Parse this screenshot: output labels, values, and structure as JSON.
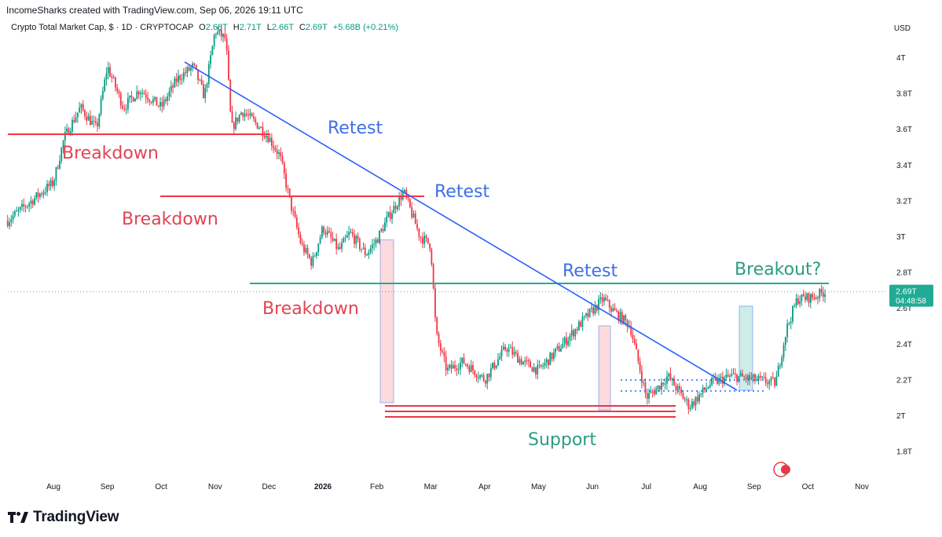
{
  "header": {
    "attribution": "IncomeSharks created with TradingView.com, Sep 06, 2026 19:11 UTC"
  },
  "legend": {
    "symbol": "Crypto Total Market Cap, $ · 1D · CRYPTOCAP",
    "open_label": "O",
    "open": "2.68T",
    "high_label": "H",
    "high": "2.71T",
    "low_label": "L",
    "low": "2.66T",
    "close_label": "C",
    "close": "2.69T",
    "change": "+5.68B (+0.21%)"
  },
  "currency": "USD",
  "price_badge": {
    "price": "2.69T",
    "countdown": "04:48:58",
    "color": "#22ab94"
  },
  "footer": {
    "brand": "TradingView"
  },
  "colors": {
    "up": "#089981",
    "down": "#f23645",
    "trend": "#2962ff",
    "support": "#e63946",
    "teal_level": "#22ab94",
    "red_annot": "#e04455",
    "blue_annot": "#3d6fe8",
    "green_annot": "#2a9d7f"
  },
  "chart_data": {
    "type": "candlestick",
    "y_axis": {
      "ticks": [
        "1.8T",
        "2T",
        "2.2T",
        "2.4T",
        "2.6T",
        "2.8T",
        "3T",
        "3.2T",
        "3.4T",
        "3.6T",
        "3.8T",
        "4T"
      ],
      "values": [
        1.8,
        2.0,
        2.2,
        2.4,
        2.6,
        2.8,
        3.0,
        3.2,
        3.4,
        3.6,
        3.8,
        4.0
      ],
      "unit": "USD"
    },
    "x_axis": {
      "labels": [
        "Aug",
        "Sep",
        "Oct",
        "Nov",
        "Dec",
        "2026",
        "Feb",
        "Mar",
        "Apr",
        "May",
        "Jun",
        "Jul",
        "Aug",
        "Sep",
        "Oct",
        "Nov"
      ]
    },
    "price_path": [
      {
        "m": 0.0,
        "v": 3.3
      },
      {
        "m": 0.2,
        "v": 3.55
      },
      {
        "m": 0.5,
        "v": 3.72
      },
      {
        "m": 0.8,
        "v": 3.6
      },
      {
        "m": 1.0,
        "v": 3.95
      },
      {
        "m": 1.3,
        "v": 3.72
      },
      {
        "m": 1.6,
        "v": 3.82
      },
      {
        "m": 2.0,
        "v": 3.72
      },
      {
        "m": 2.3,
        "v": 3.88
      },
      {
        "m": 2.6,
        "v": 3.95
      },
      {
        "m": 2.8,
        "v": 3.78
      },
      {
        "m": 3.0,
        "v": 4.15
      },
      {
        "m": 3.2,
        "v": 4.1
      },
      {
        "m": 3.3,
        "v": 3.6
      },
      {
        "m": 3.5,
        "v": 3.7
      },
      {
        "m": 3.8,
        "v": 3.62
      },
      {
        "m": 4.0,
        "v": 3.55
      },
      {
        "m": 4.2,
        "v": 3.45
      },
      {
        "m": 4.4,
        "v": 3.18
      },
      {
        "m": 4.6,
        "v": 2.95
      },
      {
        "m": 4.8,
        "v": 2.85
      },
      {
        "m": 5.0,
        "v": 3.05
      },
      {
        "m": 5.3,
        "v": 2.92
      },
      {
        "m": 5.5,
        "v": 3.02
      },
      {
        "m": 5.8,
        "v": 2.9
      },
      {
        "m": 6.0,
        "v": 2.98
      },
      {
        "m": 6.2,
        "v": 3.1
      },
      {
        "m": 6.5,
        "v": 3.25
      },
      {
        "m": 6.8,
        "v": 3.0
      },
      {
        "m": 7.0,
        "v": 2.95
      },
      {
        "m": 7.1,
        "v": 2.45
      },
      {
        "m": 7.3,
        "v": 2.25
      },
      {
        "m": 7.6,
        "v": 2.3
      },
      {
        "m": 8.0,
        "v": 2.2
      },
      {
        "m": 8.4,
        "v": 2.38
      },
      {
        "m": 8.7,
        "v": 2.3
      },
      {
        "m": 9.0,
        "v": 2.25
      },
      {
        "m": 9.4,
        "v": 2.38
      },
      {
        "m": 9.8,
        "v": 2.52
      },
      {
        "m": 10.2,
        "v": 2.65
      },
      {
        "m": 10.4,
        "v": 2.58
      },
      {
        "m": 10.7,
        "v": 2.5
      },
      {
        "m": 11.0,
        "v": 2.1
      },
      {
        "m": 11.2,
        "v": 2.15
      },
      {
        "m": 11.4,
        "v": 2.22
      },
      {
        "m": 11.8,
        "v": 2.05
      },
      {
        "m": 12.2,
        "v": 2.18
      },
      {
        "m": 12.6,
        "v": 2.22
      },
      {
        "m": 13.0,
        "v": 2.2
      },
      {
        "m": 13.4,
        "v": 2.18
      },
      {
        "m": 13.6,
        "v": 2.48
      },
      {
        "m": 13.8,
        "v": 2.65
      },
      {
        "m": 14.1,
        "v": 2.66
      },
      {
        "m": 14.3,
        "v": 2.69
      }
    ],
    "annotations": {
      "breakdown": [
        "Breakdown",
        "Breakdown",
        "Breakdown"
      ],
      "retest": [
        "Retest",
        "Retest",
        "Retest"
      ],
      "support": "Support",
      "breakout": "Breakout?"
    },
    "last_price": 2.69,
    "grid": false
  }
}
